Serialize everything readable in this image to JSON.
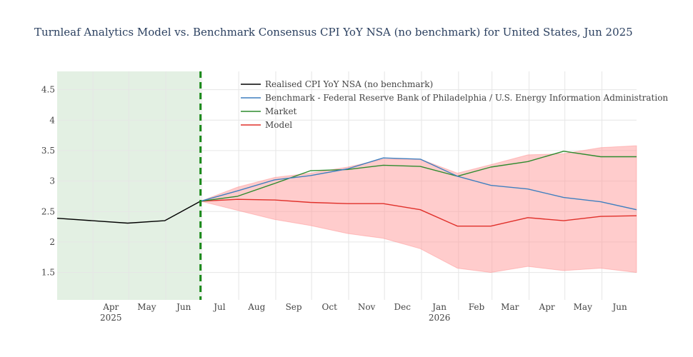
{
  "chart_data": {
    "type": "line",
    "title": "Turnleaf Analytics Model vs. Benchmark Consensus CPI YoY NSA (no benchmark) for United States, Jun 2025",
    "xlabel": "",
    "ylabel": "",
    "x_range": [
      "2025-03-02",
      "2026-06-30"
    ],
    "y_range": [
      1.05,
      4.8
    ],
    "y_ticks": [
      1.5,
      2,
      2.5,
      3,
      3.5,
      4,
      4.5
    ],
    "y_tick_labels": [
      "1.5",
      "2",
      "2.5",
      "3",
      "3.5",
      "4",
      "4.5"
    ],
    "x_ticks": [
      {
        "date": "2025-04-01",
        "label": "Apr",
        "sublabel": "2025"
      },
      {
        "date": "2025-05-01",
        "label": "May",
        "sublabel": ""
      },
      {
        "date": "2025-06-01",
        "label": "Jun",
        "sublabel": ""
      },
      {
        "date": "2025-07-01",
        "label": "Jul",
        "sublabel": ""
      },
      {
        "date": "2025-08-01",
        "label": "Aug",
        "sublabel": ""
      },
      {
        "date": "2025-09-01",
        "label": "Sep",
        "sublabel": ""
      },
      {
        "date": "2025-10-01",
        "label": "Oct",
        "sublabel": ""
      },
      {
        "date": "2025-11-01",
        "label": "Nov",
        "sublabel": ""
      },
      {
        "date": "2025-12-01",
        "label": "Dec",
        "sublabel": ""
      },
      {
        "date": "2026-01-01",
        "label": "Jan",
        "sublabel": "2026"
      },
      {
        "date": "2026-02-01",
        "label": "Feb",
        "sublabel": ""
      },
      {
        "date": "2026-03-01",
        "label": "Mar",
        "sublabel": ""
      },
      {
        "date": "2026-04-01",
        "label": "Apr",
        "sublabel": ""
      },
      {
        "date": "2026-05-01",
        "label": "May",
        "sublabel": ""
      },
      {
        "date": "2026-06-01",
        "label": "Jun",
        "sublabel": ""
      }
    ],
    "highlight_region": {
      "from": "2025-03-02",
      "to": "2025-06-30",
      "color": "#e3f0e3"
    },
    "forecast_start_line": {
      "date": "2025-06-30",
      "color": "#1a8a1a"
    },
    "legend_position": "top-center",
    "grid": true,
    "series": [
      {
        "name": "Realised CPI YoY NSA (no benchmark)",
        "color": "#000000",
        "x": [
          "2025-03-02",
          "2025-04-30",
          "2025-05-31",
          "2025-06-30"
        ],
        "y": [
          2.39,
          2.31,
          2.35,
          2.67
        ]
      },
      {
        "name": "Benchmark - Federal Reserve Bank of Philadelphia / U.S. Energy Information Administration",
        "color": "#3f7fbf",
        "x": [
          "2025-06-30",
          "2025-07-31",
          "2025-08-31",
          "2025-09-30",
          "2025-10-31",
          "2025-11-30",
          "2025-12-31",
          "2026-01-31",
          "2026-02-28",
          "2026-03-31",
          "2026-04-30",
          "2026-05-31",
          "2026-06-30"
        ],
        "y": [
          2.67,
          2.84,
          3.02,
          3.09,
          3.2,
          3.38,
          3.36,
          3.08,
          2.93,
          2.87,
          2.73,
          2.66,
          2.53
        ]
      },
      {
        "name": "Market",
        "color": "#2e8b2e",
        "x": [
          "2025-06-30",
          "2025-07-31",
          "2025-08-31",
          "2025-09-30",
          "2025-10-31",
          "2025-11-30",
          "2025-12-31",
          "2026-01-31",
          "2026-02-28",
          "2026-03-31",
          "2026-04-30",
          "2026-05-31",
          "2026-06-30"
        ],
        "y": [
          2.67,
          2.75,
          2.96,
          3.17,
          3.19,
          3.26,
          3.24,
          3.08,
          3.23,
          3.32,
          3.49,
          3.4,
          3.4
        ]
      },
      {
        "name": "Model",
        "color": "#e0302a",
        "x": [
          "2025-06-30",
          "2025-07-31",
          "2025-08-31",
          "2025-09-30",
          "2025-10-31",
          "2025-11-30",
          "2025-12-31",
          "2026-01-31",
          "2026-02-28",
          "2026-03-31",
          "2026-04-30",
          "2026-05-31",
          "2026-06-30"
        ],
        "y": [
          2.67,
          2.7,
          2.69,
          2.65,
          2.63,
          2.63,
          2.53,
          2.26,
          2.26,
          2.4,
          2.35,
          2.42,
          2.43
        ]
      }
    ],
    "band": {
      "color": "#ff9a9a",
      "x": [
        "2025-06-30",
        "2025-07-31",
        "2025-08-31",
        "2025-09-30",
        "2025-10-31",
        "2025-11-30",
        "2025-12-31",
        "2026-01-31",
        "2026-02-28",
        "2026-03-31",
        "2026-04-30",
        "2026-05-31",
        "2026-06-30"
      ],
      "upper": [
        2.67,
        2.9,
        3.06,
        3.13,
        3.23,
        3.36,
        3.36,
        3.13,
        3.27,
        3.43,
        3.45,
        3.55,
        3.58
      ],
      "lower": [
        2.67,
        2.52,
        2.37,
        2.27,
        2.14,
        2.06,
        1.89,
        1.57,
        1.5,
        1.6,
        1.53,
        1.57,
        1.5
      ]
    }
  }
}
